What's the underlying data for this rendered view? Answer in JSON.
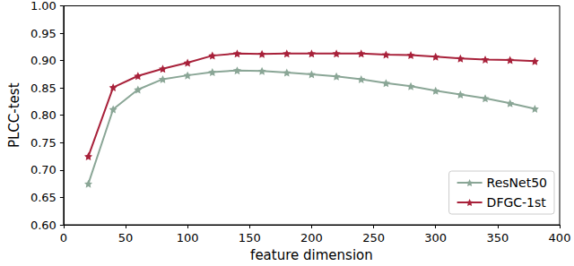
{
  "chart_data": {
    "type": "line",
    "x_label": "feature dimension",
    "y_label": "PLCC-test",
    "x": [
      20,
      40,
      60,
      80,
      100,
      120,
      140,
      160,
      180,
      200,
      220,
      240,
      260,
      280,
      300,
      320,
      340,
      360,
      380
    ],
    "series": [
      {
        "name": "ResNet50",
        "color": "#8aa696",
        "marker": "star",
        "values": [
          0.675,
          0.811,
          0.847,
          0.866,
          0.873,
          0.879,
          0.882,
          0.881,
          0.878,
          0.875,
          0.871,
          0.866,
          0.859,
          0.853,
          0.845,
          0.838,
          0.831,
          0.822,
          0.812
        ]
      },
      {
        "name": "DFGC-1st",
        "color": "#a8213a",
        "marker": "star",
        "values": [
          0.725,
          0.851,
          0.872,
          0.885,
          0.896,
          0.909,
          0.913,
          0.912,
          0.913,
          0.913,
          0.913,
          0.913,
          0.911,
          0.91,
          0.907,
          0.904,
          0.902,
          0.901,
          0.899
        ]
      }
    ],
    "xlim": [
      0,
      400
    ],
    "xticks": [
      0,
      50,
      100,
      150,
      200,
      250,
      300,
      350,
      400
    ],
    "ylim": [
      0.6,
      1.0
    ],
    "yticks": [
      {
        "value": 0.6,
        "label": "0.60"
      },
      0.65,
      {
        "value": 0.7,
        "label": "0.70"
      },
      0.75,
      {
        "value": 0.8,
        "label": "0.80"
      },
      0.85,
      {
        "value": 0.9,
        "label": "0.90"
      },
      0.95,
      {
        "value": 1.0,
        "label": "1.00"
      }
    ],
    "grid": false,
    "legend": "lower right"
  }
}
